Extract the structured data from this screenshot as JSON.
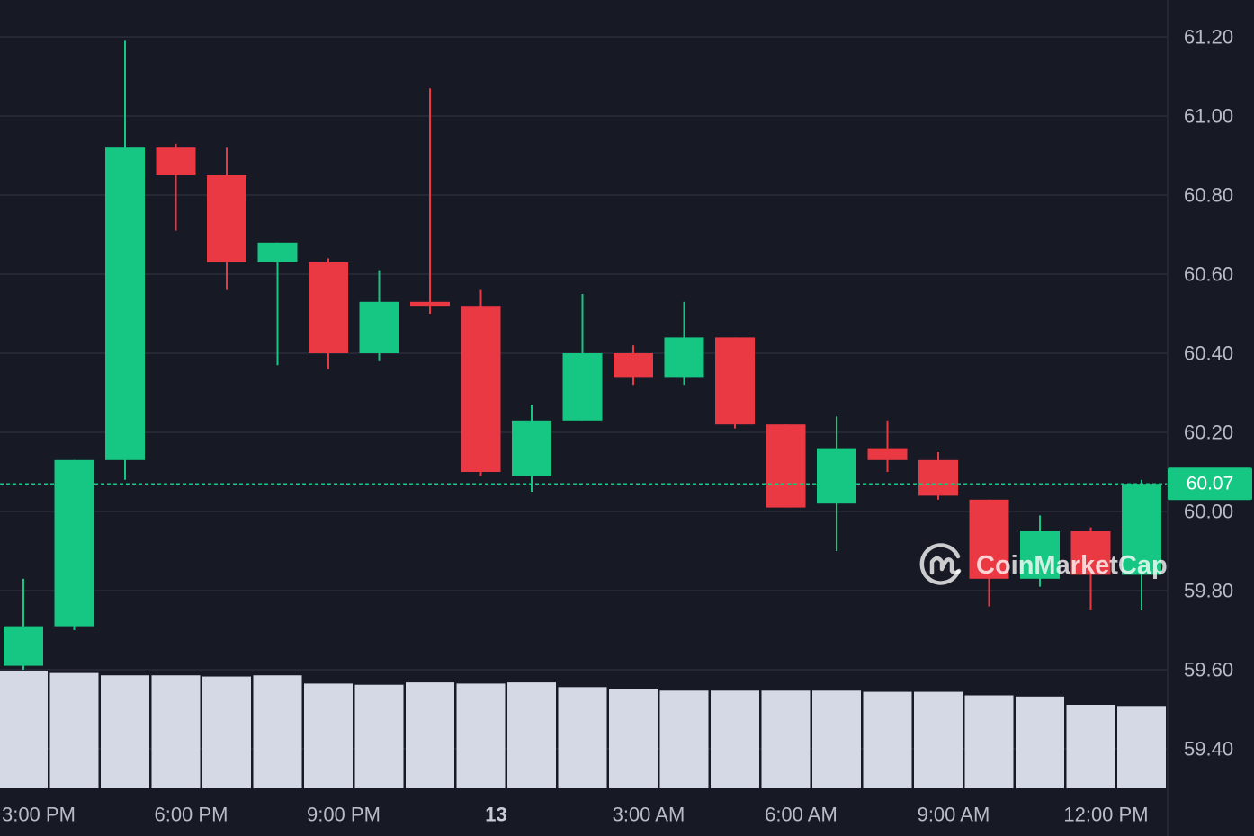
{
  "chart_data": {
    "type": "candlestick",
    "price_axis": {
      "ticks": [
        "61.20",
        "61.00",
        "60.80",
        "60.60",
        "60.40",
        "60.20",
        "60.00",
        "59.80",
        "59.60",
        "59.40"
      ],
      "range": [
        59.3,
        61.28
      ]
    },
    "time_axis": {
      "ticks": [
        {
          "label": "3:00 PM",
          "index": 0.3
        },
        {
          "label": "6:00 PM",
          "index": 3.3
        },
        {
          "label": "9:00 PM",
          "index": 6.3
        },
        {
          "label": "13",
          "index": 9.3,
          "bold": true
        },
        {
          "label": "3:00 AM",
          "index": 12.3
        },
        {
          "label": "6:00 AM",
          "index": 15.3
        },
        {
          "label": "9:00 AM",
          "index": 18.3
        },
        {
          "label": "12:00 PM",
          "index": 21.3
        }
      ]
    },
    "current_price": "60.07",
    "current_price_value": 60.07,
    "candles": [
      {
        "o": 59.61,
        "h": 59.83,
        "l": 59.6,
        "c": 59.71
      },
      {
        "o": 59.71,
        "h": 60.13,
        "l": 59.7,
        "c": 60.13
      },
      {
        "o": 60.13,
        "h": 61.19,
        "l": 60.08,
        "c": 60.92
      },
      {
        "o": 60.92,
        "h": 60.93,
        "l": 60.71,
        "c": 60.85
      },
      {
        "o": 60.85,
        "h": 60.92,
        "l": 60.56,
        "c": 60.63
      },
      {
        "o": 60.63,
        "h": 60.68,
        "l": 60.37,
        "c": 60.68
      },
      {
        "o": 60.63,
        "h": 60.64,
        "l": 60.36,
        "c": 60.4
      },
      {
        "o": 60.4,
        "h": 60.61,
        "l": 60.38,
        "c": 60.53
      },
      {
        "o": 60.53,
        "h": 61.07,
        "l": 60.5,
        "c": 60.52
      },
      {
        "o": 60.52,
        "h": 60.56,
        "l": 60.09,
        "c": 60.1
      },
      {
        "o": 60.09,
        "h": 60.27,
        "l": 60.05,
        "c": 60.23
      },
      {
        "o": 60.23,
        "h": 60.55,
        "l": 60.23,
        "c": 60.4
      },
      {
        "o": 60.4,
        "h": 60.42,
        "l": 60.32,
        "c": 60.34
      },
      {
        "o": 60.34,
        "h": 60.53,
        "l": 60.32,
        "c": 60.44
      },
      {
        "o": 60.44,
        "h": 60.44,
        "l": 60.21,
        "c": 60.22
      },
      {
        "o": 60.22,
        "h": 60.22,
        "l": 60.01,
        "c": 60.01
      },
      {
        "o": 60.02,
        "h": 60.24,
        "l": 59.9,
        "c": 60.16
      },
      {
        "o": 60.16,
        "h": 60.23,
        "l": 60.1,
        "c": 60.13
      },
      {
        "o": 60.13,
        "h": 60.15,
        "l": 60.03,
        "c": 60.04
      },
      {
        "o": 60.03,
        "h": 60.03,
        "l": 59.76,
        "c": 59.83
      },
      {
        "o": 59.83,
        "h": 59.99,
        "l": 59.81,
        "c": 59.95
      },
      {
        "o": 59.95,
        "h": 59.96,
        "l": 59.75,
        "c": 59.84
      },
      {
        "o": 59.84,
        "h": 60.08,
        "l": 59.75,
        "c": 60.07
      }
    ],
    "volume": [
      1.0,
      0.98,
      0.96,
      0.96,
      0.95,
      0.96,
      0.89,
      0.88,
      0.9,
      0.89,
      0.9,
      0.86,
      0.84,
      0.83,
      0.83,
      0.83,
      0.83,
      0.82,
      0.82,
      0.79,
      0.78,
      0.71,
      0.7
    ]
  },
  "watermark": {
    "text": "CoinMarketCap",
    "icon": "coinmarketcap-logo-icon"
  },
  "colors": {
    "background": "#171924",
    "grid": "#2a2d3a",
    "up": "#16c784",
    "down": "#ea3943",
    "volume": "#d4d9e5",
    "axis_text": "#b8bcc8"
  }
}
